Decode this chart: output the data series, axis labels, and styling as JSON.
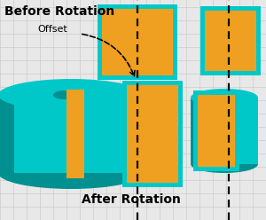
{
  "bg_color": "#e8e8e8",
  "grid_color": "#cccccc",
  "teal": "#00c8c8",
  "teal_dark": "#009090",
  "teal_mid": "#00b0b0",
  "orange": "#f0a020",
  "black": "#000000",
  "white": "#ffffff",
  "title_before": "Before Rotation",
  "title_after": "After Rotation",
  "offset_label": "Offset",
  "grid_step": 15
}
